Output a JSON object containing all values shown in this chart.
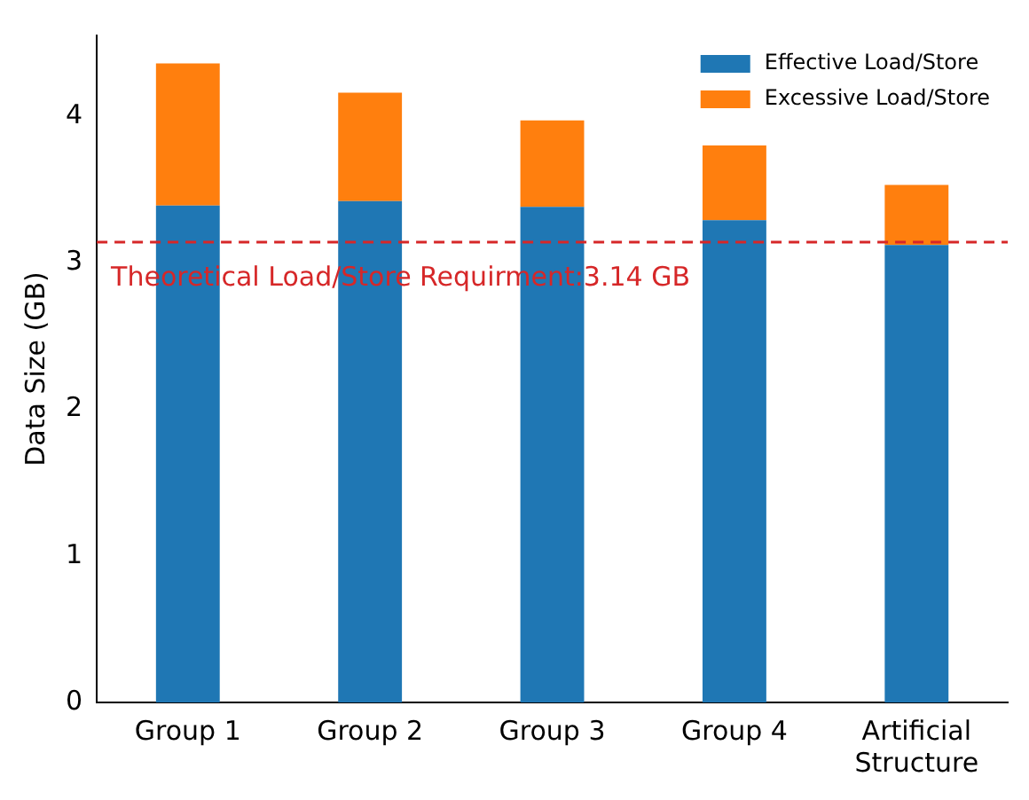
{
  "chart_data": {
    "type": "bar",
    "stacked": true,
    "categories": [
      "Group 1",
      "Group 2",
      "Group 3",
      "Group 4",
      "Artificial Structure"
    ],
    "series": [
      {
        "name": "Effective Load/Store",
        "color": "#1f77b4",
        "values": [
          3.39,
          3.42,
          3.38,
          3.29,
          3.12
        ]
      },
      {
        "name": "Excessive Load/Store",
        "color": "#ff7f0e",
        "values": [
          0.97,
          0.74,
          0.59,
          0.51,
          0.41
        ]
      }
    ],
    "ylabel": "Data Size (GB)",
    "ylim": [
      0,
      4.55
    ],
    "yticks": [
      0,
      1,
      2,
      3,
      4
    ],
    "grid": false,
    "legend": "top right",
    "ref_lines": [
      {
        "axis": "y",
        "value": 3.14,
        "label": "Theoretical Load/Store Requirment:3.14 GB",
        "color": "#d62728",
        "line_style": "dashed"
      }
    ]
  }
}
